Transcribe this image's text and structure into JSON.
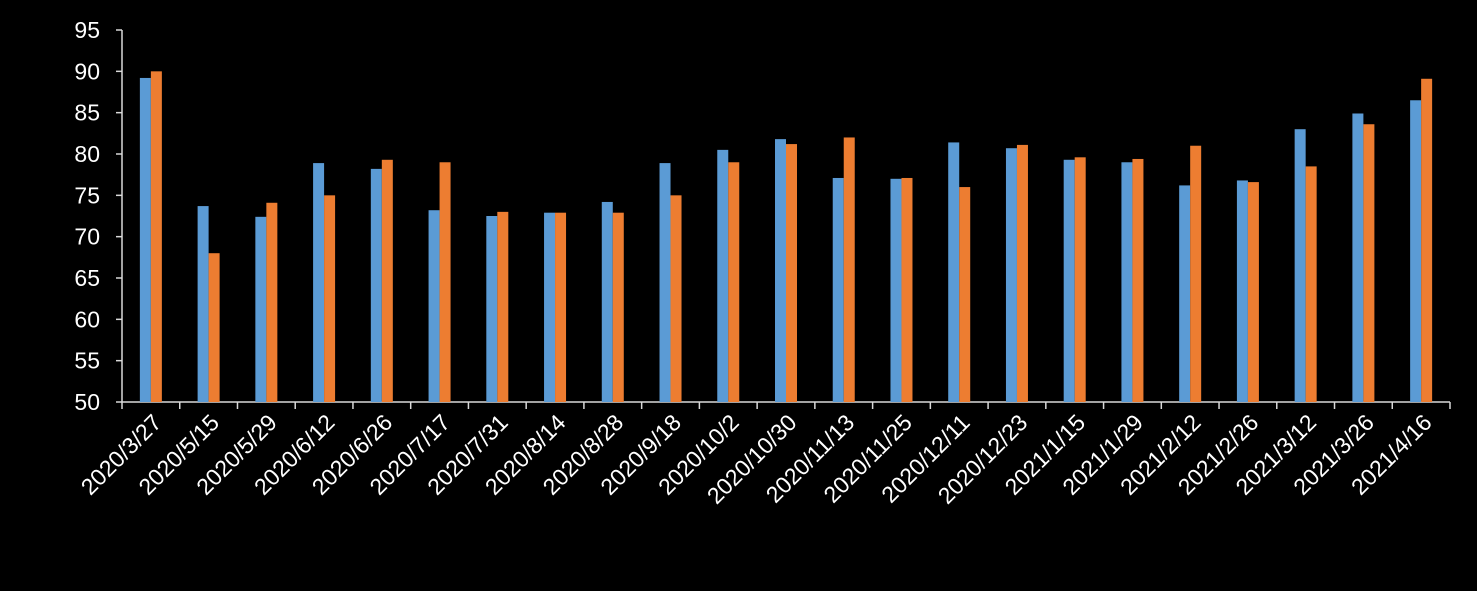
{
  "chart_data": {
    "type": "bar",
    "categories": [
      "2020/3/27",
      "2020/5/15",
      "2020/5/29",
      "2020/6/12",
      "2020/6/26",
      "2020/7/17",
      "2020/7/31",
      "2020/8/14",
      "2020/8/28",
      "2020/9/18",
      "2020/10/2",
      "2020/10/30",
      "2020/11/13",
      "2020/11/25",
      "2020/12/11",
      "2020/12/23",
      "2021/1/15",
      "2021/1/29",
      "2021/2/12",
      "2021/2/26",
      "2021/3/12",
      "2021/3/26",
      "2021/4/16"
    ],
    "series": [
      {
        "color": "#5b9bd5",
        "values": [
          89.2,
          73.7,
          72.4,
          78.9,
          78.2,
          73.2,
          72.5,
          72.9,
          74.2,
          78.9,
          80.5,
          81.8,
          77.1,
          77.0,
          81.4,
          80.7,
          79.3,
          79.0,
          76.2,
          76.8,
          83.0,
          84.9,
          86.5
        ]
      },
      {
        "color": "#ed7d31",
        "values": [
          90.0,
          68.0,
          74.1,
          75.0,
          79.3,
          79.0,
          73.0,
          72.9,
          72.9,
          75.0,
          79.0,
          81.2,
          82.0,
          77.1,
          76.0,
          81.1,
          79.6,
          79.4,
          81.0,
          76.6,
          78.5,
          83.6,
          89.1
        ]
      }
    ],
    "ylim": [
      50,
      95
    ],
    "yticks": [
      50,
      55,
      60,
      65,
      70,
      75,
      80,
      85,
      90,
      95
    ],
    "grid": false
  }
}
